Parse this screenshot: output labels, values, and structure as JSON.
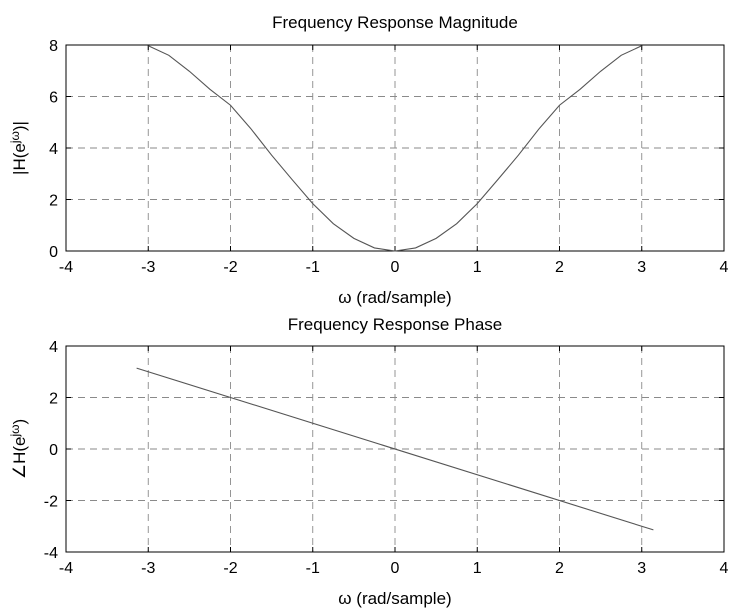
{
  "chart_data": [
    {
      "type": "line",
      "title": "Frequency Response Magnitude",
      "xlabel": "ω (rad/sample)",
      "ylabel_parts": [
        "|H(e",
        "jω",
        ")|"
      ],
      "xlim": [
        -4,
        4
      ],
      "ylim": [
        0,
        8
      ],
      "xticks": [
        -4,
        -3,
        -2,
        -1,
        0,
        1,
        2,
        3,
        4
      ],
      "yticks": [
        0,
        2,
        4,
        6,
        8
      ],
      "grid": true,
      "series": [
        {
          "x": [
            -3.0,
            -2.75,
            -2.5,
            -2.25,
            -2.0,
            -1.75,
            -1.5,
            -1.25,
            -1.0,
            -0.75,
            -0.5,
            -0.25,
            0.0,
            0.25,
            0.5,
            0.75,
            1.0,
            1.25,
            1.5,
            1.75,
            2.0,
            2.25,
            2.5,
            2.75,
            3.0
          ],
          "y": [
            7.97,
            7.6,
            6.98,
            6.28,
            5.66,
            4.74,
            3.72,
            2.77,
            1.84,
            1.06,
            0.49,
            0.12,
            0.0,
            0.12,
            0.49,
            1.06,
            1.84,
            2.77,
            3.72,
            4.74,
            5.66,
            6.28,
            6.98,
            7.6,
            7.97
          ]
        }
      ]
    },
    {
      "type": "line",
      "title": "Frequency Response Phase",
      "xlabel": "ω (rad/sample)",
      "ylabel_parts": [
        "∠H(e",
        "jω",
        ")"
      ],
      "xlim": [
        -4,
        4
      ],
      "ylim": [
        -4,
        4
      ],
      "xticks": [
        -4,
        -3,
        -2,
        -1,
        0,
        1,
        2,
        3,
        4
      ],
      "yticks": [
        -4,
        -2,
        0,
        2,
        4
      ],
      "grid": true,
      "series": [
        {
          "x": [
            -3.1416,
            3.1416
          ],
          "y": [
            3.1416,
            -3.1416
          ]
        }
      ]
    }
  ]
}
